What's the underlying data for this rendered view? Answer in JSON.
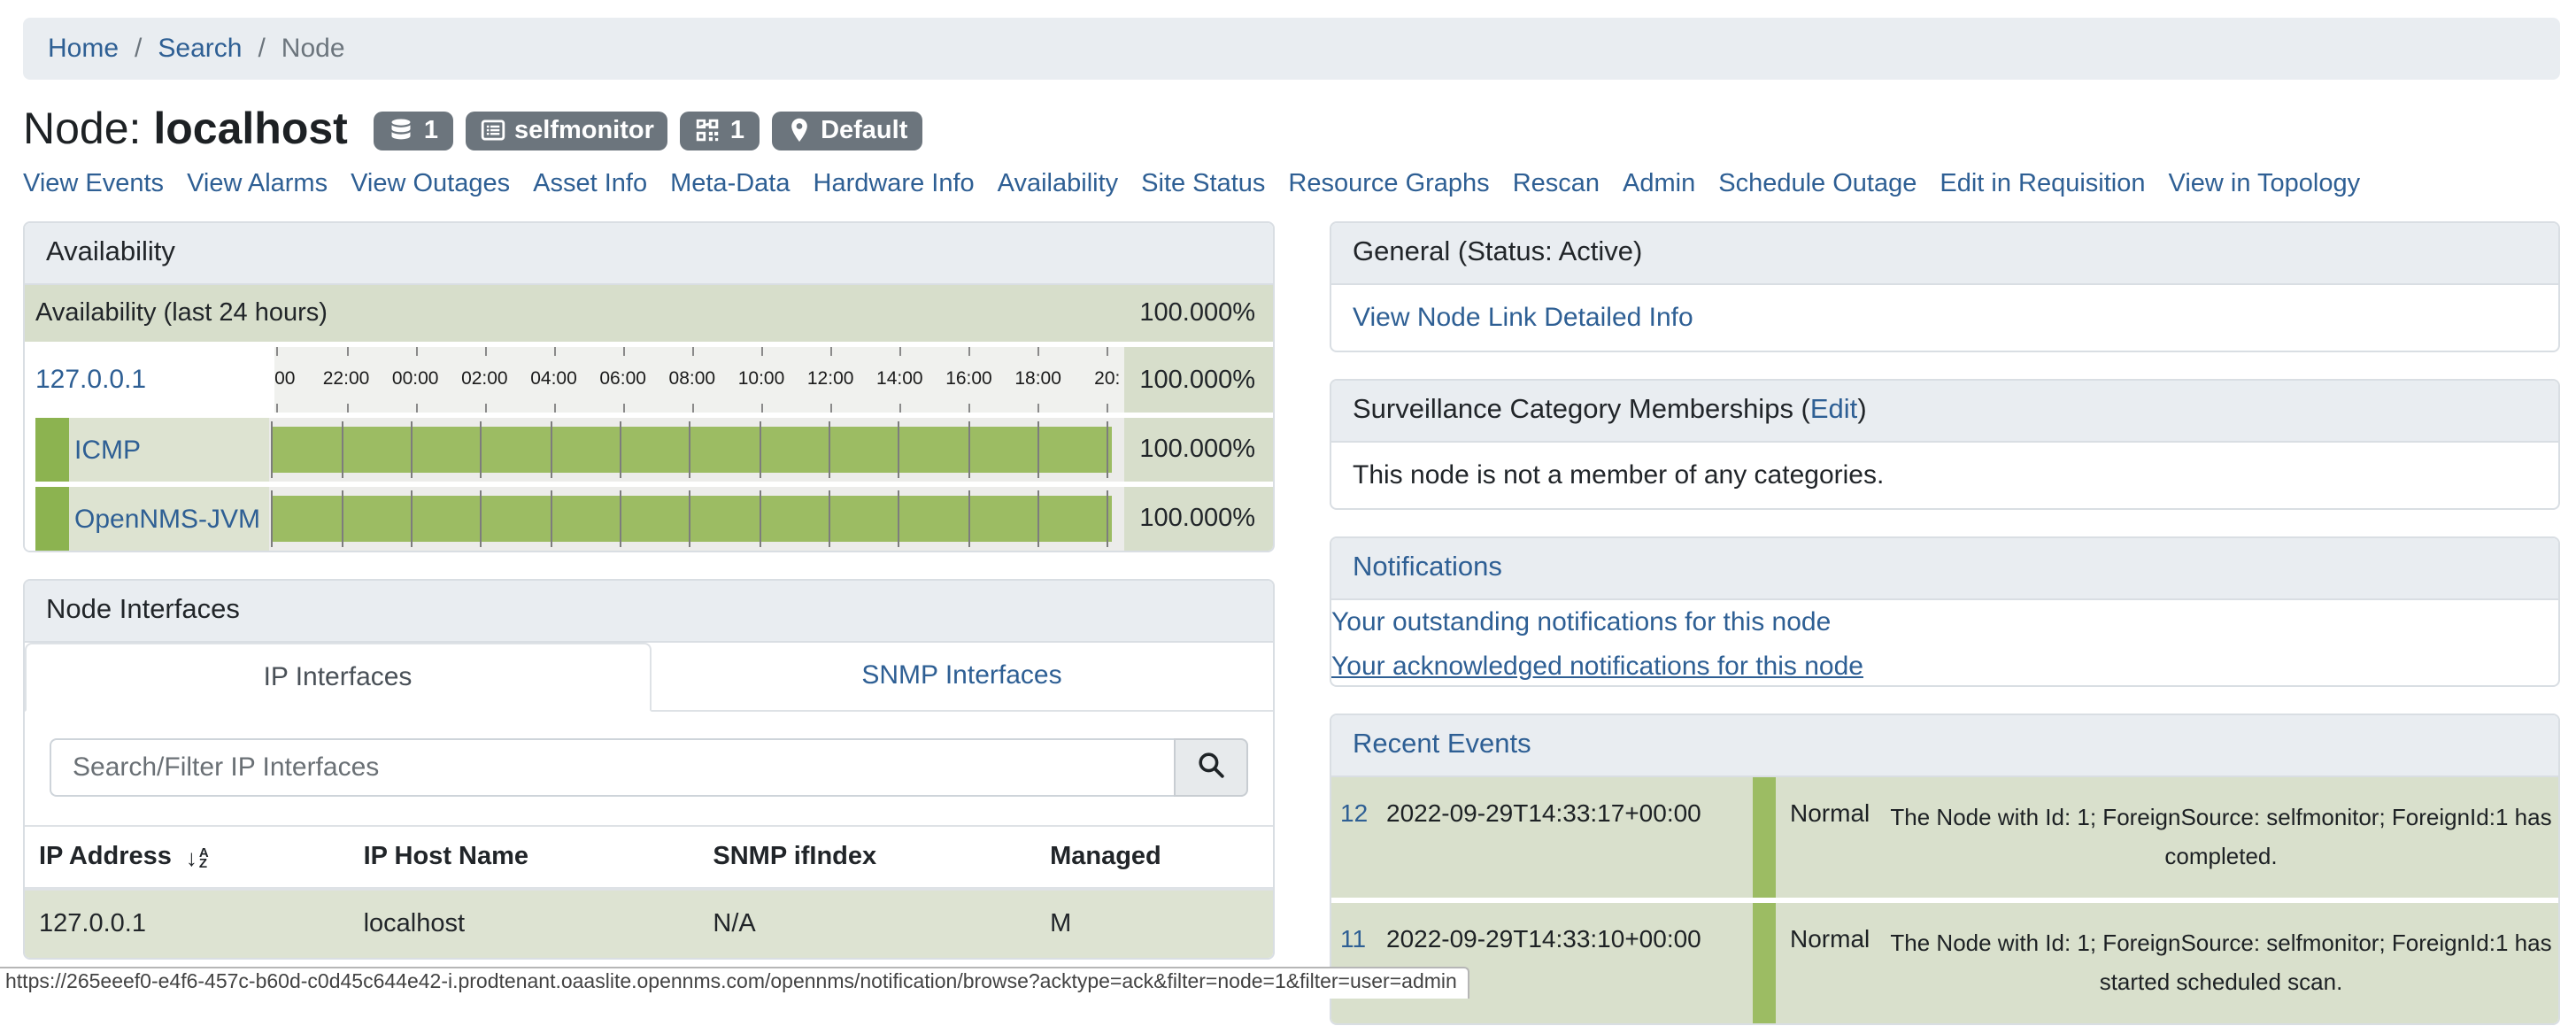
{
  "breadcrumb": {
    "items": [
      {
        "label": "Home",
        "link": true
      },
      {
        "label": "Search",
        "link": true
      },
      {
        "label": "Node",
        "link": false
      }
    ],
    "separator": "/"
  },
  "header": {
    "title_prefix": "Node:",
    "title_name": "localhost",
    "badges": [
      {
        "icon": "database-icon",
        "label": "1"
      },
      {
        "icon": "requisition-icon",
        "label": "selfmonitor"
      },
      {
        "icon": "foreign-id-icon",
        "label": "1"
      },
      {
        "icon": "location-pin-icon",
        "label": "Default"
      }
    ]
  },
  "nav": {
    "links": [
      "View Events",
      "View Alarms",
      "View Outages",
      "Asset Info",
      "Meta-Data",
      "Hardware Info",
      "Availability",
      "Site Status",
      "Resource Graphs",
      "Rescan",
      "Admin",
      "Schedule Outage",
      "Edit in Requisition",
      "View in Topology"
    ]
  },
  "availability": {
    "title": "Availability",
    "overall": {
      "label": "Availability (last 24 hours)",
      "value": "100.000%"
    },
    "interface": {
      "label": "127.0.0.1",
      "value": "100.000%"
    },
    "axis_labels": [
      "00",
      "22:00",
      "00:00",
      "02:00",
      "04:00",
      "06:00",
      "08:00",
      "10:00",
      "12:00",
      "14:00",
      "16:00",
      "18:00",
      "20:"
    ],
    "services": [
      {
        "label": "ICMP",
        "value": "100.000%",
        "availability_pct": 100.0
      },
      {
        "label": "OpenNMS-JVM",
        "value": "100.000%",
        "availability_pct": 100.0
      }
    ]
  },
  "node_interfaces": {
    "title": "Node Interfaces",
    "tabs": [
      {
        "label": "IP Interfaces",
        "active": true
      },
      {
        "label": "SNMP Interfaces",
        "active": false
      }
    ],
    "search_placeholder": "Search/Filter IP Interfaces",
    "table": {
      "columns": [
        "IP Address",
        "IP Host Name",
        "SNMP ifIndex",
        "Managed"
      ],
      "rows": [
        [
          "127.0.0.1",
          "localhost",
          "N/A",
          "M"
        ]
      ]
    }
  },
  "general": {
    "title": "General (Status: Active)",
    "link": "View Node Link Detailed Info"
  },
  "surveillance": {
    "title_prefix": "Surveillance Category Memberships (",
    "edit_link": "Edit",
    "title_suffix": ")",
    "body": "This node is not a member of any categories."
  },
  "notifications": {
    "title": "Notifications",
    "links": [
      "Your outstanding notifications for this node",
      "Your acknowledged notifications for this node"
    ]
  },
  "recent_events": {
    "title": "Recent Events",
    "events": [
      {
        "id": "12",
        "time": "2022-09-29T14:33:17+00:00",
        "severity": "Normal",
        "description": "The Node with Id: 1; ForeignSource: selfmonitor; ForeignId:1 has completed."
      },
      {
        "id": "11",
        "time": "2022-09-29T14:33:10+00:00",
        "severity": "Normal",
        "description": "The Node with Id: 1; ForeignSource: selfmonitor; ForeignId:1 has started scheduled scan."
      }
    ]
  },
  "status_bar": {
    "url": "https://265eeef0-e4f6-457c-b60d-c0d45c644e42-i.prodtenant.oaaslite.opennms.com/opennms/notification/browse?acktype=ack&filter=node=1&filter=user=admin"
  },
  "colors": {
    "link_blue": "#2e5f94",
    "badge_gray": "#6c757d",
    "panel_header_bg": "#e9edf1",
    "availability_green": "#d7decb",
    "service_label_green": "#dde3d1",
    "bar_green": "#9cbc63",
    "strip_green": "#8cb350",
    "event_row_green": "#d9e0cc"
  }
}
